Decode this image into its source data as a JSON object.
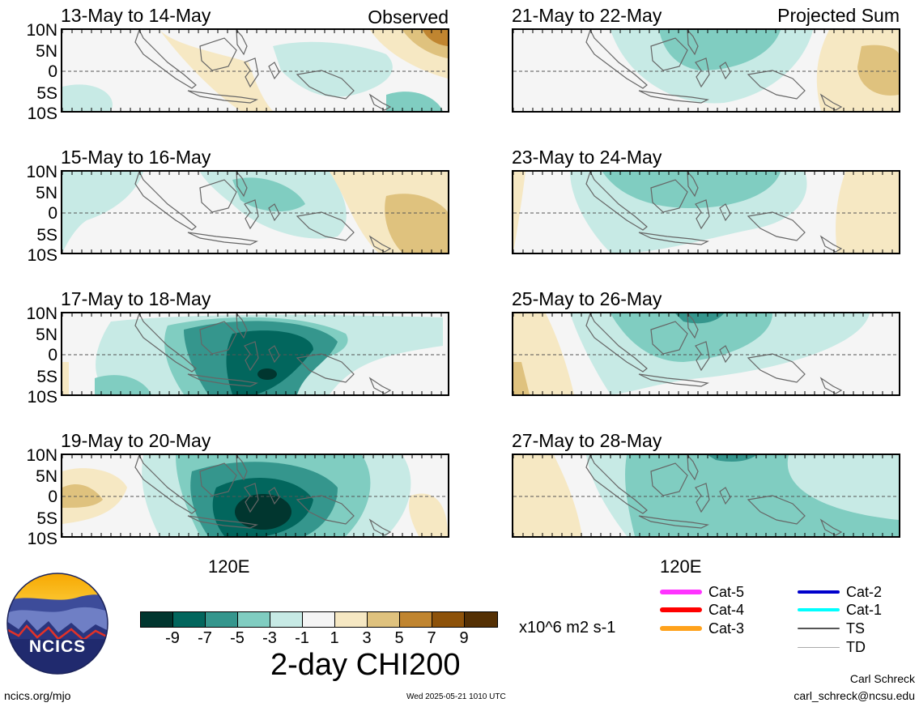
{
  "panels_left": [
    {
      "title": "13-May to 14-May",
      "tag": "Observed"
    },
    {
      "title": "15-May to 16-May",
      "tag": ""
    },
    {
      "title": "17-May to 18-May",
      "tag": ""
    },
    {
      "title": "19-May to 20-May",
      "tag": ""
    }
  ],
  "panels_right": [
    {
      "title": "21-May to 22-May",
      "tag": "Projected Sum"
    },
    {
      "title": "23-May to 24-May",
      "tag": ""
    },
    {
      "title": "25-May to 26-May",
      "tag": ""
    },
    {
      "title": "27-May to 28-May",
      "tag": ""
    }
  ],
  "lat_labels": [
    "10N",
    "5N",
    "0",
    "5S",
    "10S"
  ],
  "lon_label": "120E",
  "colorbar": {
    "colors": [
      "#01362f",
      "#02665d",
      "#35968d",
      "#80cdc1",
      "#c7eae5",
      "#f5f5f5",
      "#f6e8c3",
      "#dfc27e",
      "#c08530",
      "#8d520a",
      "#543004"
    ],
    "ticks": [
      "-9",
      "-7",
      "-5",
      "-3",
      "-1",
      "1",
      "3",
      "5",
      "7",
      "9"
    ],
    "units": "x10^6 m2 s-1",
    "title": "2-day CHI200"
  },
  "legend": [
    {
      "label": "Cat-5",
      "color": "#ff33ff"
    },
    {
      "label": "Cat-4",
      "color": "#ff0000"
    },
    {
      "label": "Cat-3",
      "color": "#ffa21c"
    },
    {
      "label": "Cat-2",
      "color": "#0000cc"
    },
    {
      "label": "Cat-1",
      "color": "#00ffff"
    },
    {
      "label": "TS",
      "color": "#555555"
    },
    {
      "label": "TD",
      "color": "#aaaaaa"
    }
  ],
  "logo_text": "NCICS",
  "footer": {
    "url": "ncics.org/mjo",
    "timestamp": "Wed 2025-05-21 1010 UTC",
    "author": "Carl Schreck",
    "email": "carl_schreck@ncsu.edu"
  }
}
